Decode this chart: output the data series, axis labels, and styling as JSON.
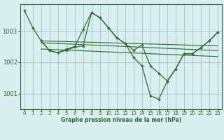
{
  "bg_color": "#d8eef0",
  "grid_color": "#9fc4c8",
  "line_color": "#2d6e2d",
  "xlabel": "Graphe pression niveau de la mer (hPa)",
  "xlim": [
    -0.5,
    23.5
  ],
  "ylim": [
    1000.5,
    1003.85
  ],
  "yticks": [
    1001,
    1002,
    1003
  ],
  "xticks": [
    0,
    1,
    2,
    3,
    4,
    5,
    6,
    7,
    8,
    9,
    10,
    11,
    12,
    13,
    14,
    15,
    16,
    17,
    18,
    19,
    20,
    21,
    22,
    23
  ],
  "series_main": {
    "x": [
      0,
      1,
      2,
      3,
      4,
      5,
      6,
      7,
      8,
      9,
      10,
      11,
      12,
      13,
      14,
      15,
      16,
      17,
      18,
      19,
      20,
      21,
      22,
      23
    ],
    "y": [
      1003.65,
      1003.1,
      1002.68,
      1002.37,
      1002.3,
      1002.42,
      1002.5,
      1003.05,
      1003.58,
      1003.42,
      1003.1,
      1002.78,
      1002.6,
      1002.15,
      1001.88,
      1000.93,
      1000.82,
      1001.38,
      1001.78,
      1002.27,
      1002.27,
      1002.46,
      1002.68,
      1002.95
    ]
  },
  "series_b": {
    "x": [
      2,
      3,
      4,
      5,
      6,
      7,
      8,
      9,
      10,
      11,
      12,
      13,
      14,
      15,
      16,
      17,
      18,
      19,
      20,
      21,
      22,
      23
    ],
    "y": [
      1002.68,
      1002.37,
      1002.3,
      1002.38,
      1002.48,
      1002.52,
      1003.58,
      1003.42,
      1003.1,
      1002.78,
      1002.6,
      1002.38,
      1002.55,
      1001.88,
      1001.65,
      1001.4,
      1001.78,
      1002.27,
      1002.27,
      1002.46,
      1002.68,
      1002.95
    ]
  },
  "line_trend1": {
    "x": [
      2,
      23
    ],
    "y": [
      1002.68,
      1002.52
    ]
  },
  "line_trend2": {
    "x": [
      2,
      23
    ],
    "y": [
      1002.62,
      1002.37
    ]
  },
  "line_trend3": {
    "x": [
      2,
      23
    ],
    "y": [
      1002.42,
      1002.18
    ]
  }
}
